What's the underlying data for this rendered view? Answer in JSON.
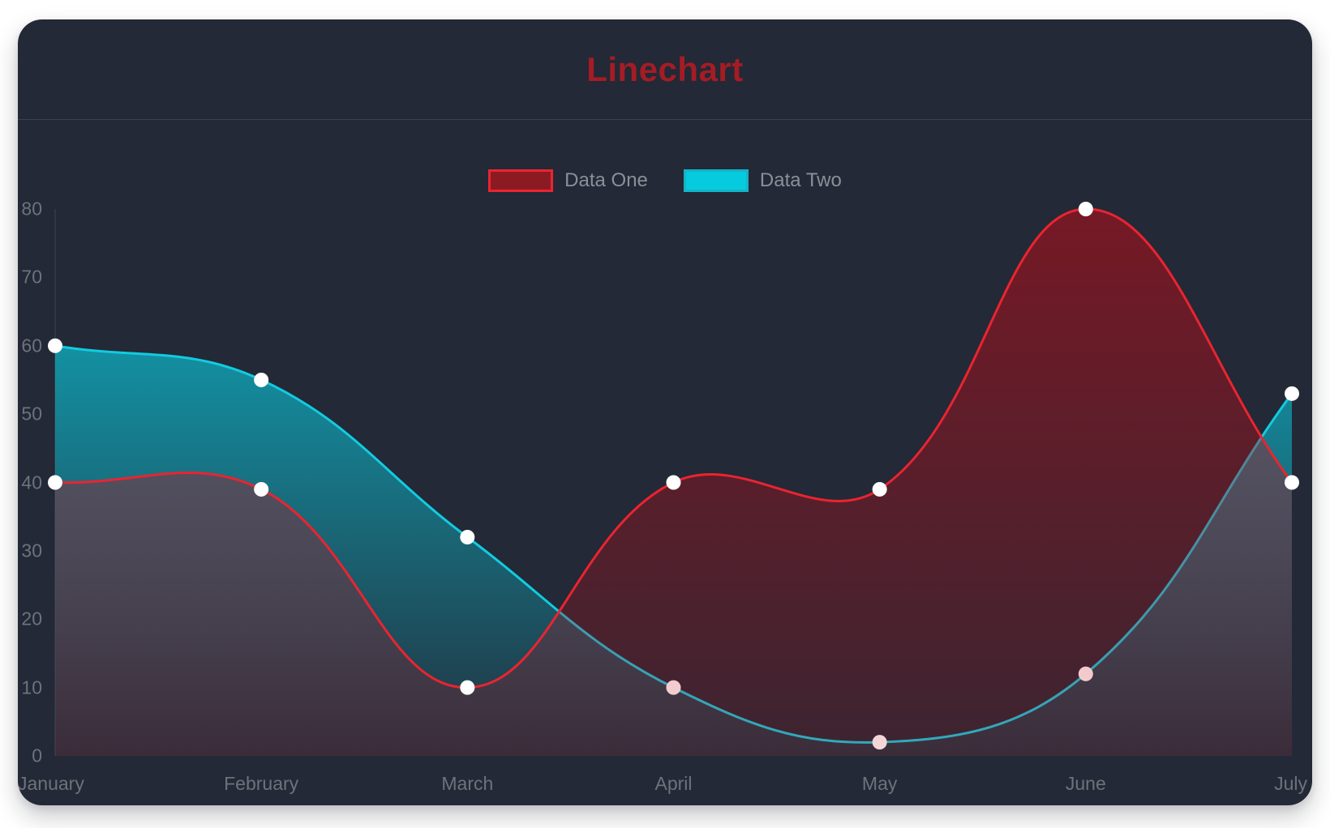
{
  "page": {
    "background": "#ffffff"
  },
  "card": {
    "background": "#232936",
    "divider_color": "#3a4156"
  },
  "chart_data": {
    "type": "line",
    "title": "Linechart",
    "title_color": "#a51c24",
    "categories": [
      "January",
      "February",
      "March",
      "April",
      "May",
      "June",
      "July"
    ],
    "series": [
      {
        "name": "Data One",
        "values": [
          40,
          39,
          10,
          40,
          39,
          80,
          40
        ],
        "line_color": "#ea2430",
        "fill_rgb": "193,10,22",
        "fill_alpha_top": 0.52,
        "fill_alpha_bottom": 0.16,
        "legend_swatch_fill": "#8c1a22",
        "legend_swatch_border": "#ea2430"
      },
      {
        "name": "Data Two",
        "values": [
          60,
          55,
          32,
          10,
          2,
          12,
          53
        ],
        "line_color": "#12cbdf",
        "fill_rgb": "10,200,220",
        "fill_alpha_top": 0.85,
        "fill_alpha_bottom": 0.06,
        "legend_swatch_fill": "#06cbdf",
        "legend_swatch_border": "#15b4c8"
      }
    ],
    "ylim": [
      0,
      80
    ],
    "y_ticks": [
      0,
      10,
      20,
      30,
      40,
      50,
      60,
      70,
      80
    ],
    "xlabel": "",
    "ylabel": "",
    "grid": "off",
    "legend_position": "top",
    "line_tension": 0.4,
    "line_width": 3,
    "point_color": "#ffffff",
    "point_radius": 9,
    "axis_line_color": "#3b4252",
    "axis_text_color": "#6e727c",
    "legend_text_color": "#8b8f98"
  }
}
